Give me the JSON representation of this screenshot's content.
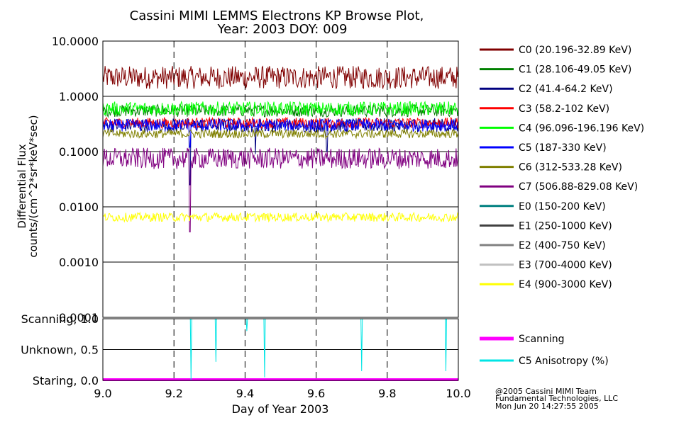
{
  "chart_data": {
    "type": "line",
    "title": [
      "Cassini MIMI LEMMS Electrons KP Browse Plot,",
      "Year: 2003 DOY: 009"
    ],
    "xlabel": "Day of Year 2003",
    "xlim": [
      9.0,
      10.0
    ],
    "xticks": [
      "9.0",
      "9.2",
      "9.4",
      "9.6",
      "9.8",
      "10.0"
    ],
    "flux_panel": {
      "ylabel": [
        "Differential Flux",
        "counts/(cm^2*sr*keV*sec)"
      ],
      "yscale": "log",
      "ylim": [
        0.0001,
        10
      ],
      "yticks": [
        "10.0000",
        "1.0000",
        "0.1000",
        "0.0100",
        "0.0010",
        "0.0001"
      ],
      "series": [
        {
          "name": "C0 (20.196-32.89 KeV)",
          "color": "#800000",
          "base": 2.2,
          "noise": 0.13,
          "dips": []
        },
        {
          "name": "C1 (28.106-49.05 KeV)",
          "color": "#008000",
          "base": 0.55,
          "noise": 0.07,
          "dips": []
        },
        {
          "name": "C2 (41.4-64.2 KeV)",
          "color": "#000080",
          "base": 0.3,
          "noise": 0.08,
          "dips": [
            {
              "x": 9.245,
              "y": 0.025
            },
            {
              "x": 9.43,
              "y": 0.09
            },
            {
              "x": 9.63,
              "y": 0.1
            }
          ]
        },
        {
          "name": "C3 (58.2-102 KeV)",
          "color": "#ff0000",
          "base": 0.33,
          "noise": 0.06,
          "dips": []
        },
        {
          "name": "C4 (96.096-196.196 KeV)",
          "color": "#00ff00",
          "base": 0.6,
          "noise": 0.08,
          "dips": []
        },
        {
          "name": "C5 (187-330 KeV)",
          "color": "#0000ff",
          "base": 0.3,
          "noise": 0.07,
          "dips": [
            {
              "x": 9.245,
              "y": 0.12
            }
          ]
        },
        {
          "name": "C6 (312-533.28 KeV)",
          "color": "#808000",
          "base": 0.21,
          "noise": 0.05,
          "dips": []
        },
        {
          "name": "C7 (506.88-829.08 KeV)",
          "color": "#800080",
          "base": 0.075,
          "noise": 0.12,
          "dips": [
            {
              "x": 9.245,
              "y": 0.0035
            }
          ]
        },
        {
          "name": "E0 (150-200 KeV)",
          "color": "#008080",
          "base": null,
          "noise": 0,
          "dips": []
        },
        {
          "name": "E1 (250-1000 KeV)",
          "color": "#404040",
          "base": null,
          "noise": 0,
          "dips": []
        },
        {
          "name": "E2 (400-750 KeV)",
          "color": "#808080",
          "base": null,
          "noise": 0,
          "dips": []
        },
        {
          "name": "E3 (700-4000 KeV)",
          "color": "#c0c0c0",
          "base": null,
          "noise": 0,
          "dips": []
        },
        {
          "name": "E4 (900-3000 KeV)",
          "color": "#ffff00",
          "base": 0.0065,
          "noise": 0.05,
          "dips": []
        }
      ]
    },
    "status_panel": {
      "ylim": [
        0,
        1
      ],
      "yticks": [
        "Scanning, 1.0",
        "Unknown, 0.5",
        "Staring, 0.0"
      ],
      "series": [
        {
          "name": "Scanning",
          "color": "#ff00ff",
          "value": 0.0
        },
        {
          "name": "C5 Anisotropy (%)",
          "color": "#00e5e5",
          "value": 1.0,
          "dips": [
            {
              "x": 9.248,
              "y": 0.0
            },
            {
              "x": 9.318,
              "y": 0.3
            },
            {
              "x": 9.405,
              "y": 0.8
            },
            {
              "x": 9.455,
              "y": 0.05
            },
            {
              "x": 9.728,
              "y": 0.15
            },
            {
              "x": 9.965,
              "y": 0.15
            }
          ]
        }
      ]
    }
  },
  "footer": [
    "@2005 Cassini MIMI Team",
    "Fundamental Technologies, LLC",
    "Mon Jun 20 14:27:55 2005"
  ]
}
